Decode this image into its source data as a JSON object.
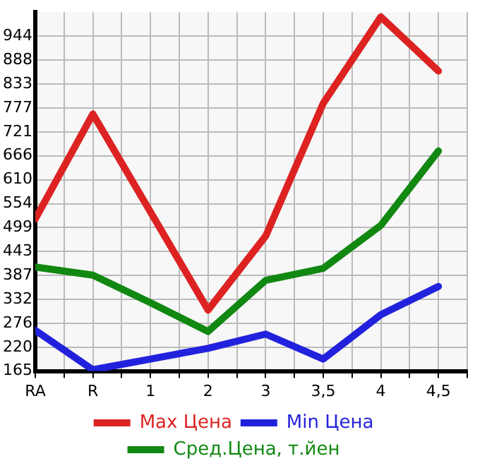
{
  "chart_data": {
    "type": "line",
    "categories": [
      "RA",
      "R",
      "1",
      "2",
      "3",
      "3,5",
      "4",
      "4,5"
    ],
    "series": [
      {
        "name": "Max Цена",
        "color": "#dd2222",
        "values": [
          519,
          763,
          535,
          307,
          479,
          788,
          989,
          863
        ]
      },
      {
        "name": "Min Цена",
        "color": "#2222dd",
        "values": [
          260,
          168,
          193,
          218,
          251,
          193,
          296,
          362
        ]
      },
      {
        "name": "Сред.Цена, т.йен",
        "color": "#118811",
        "values": [
          407,
          388,
          324,
          257,
          376,
          404,
          504,
          677
        ]
      }
    ],
    "ylim": [
      165,
      1000
    ],
    "yticks": [
      165,
      220,
      276,
      332,
      387,
      443,
      499,
      554,
      610,
      666,
      721,
      777,
      833,
      888,
      944
    ],
    "grid": true,
    "legend": "bottom",
    "marker": "none",
    "line_style": "solid"
  }
}
